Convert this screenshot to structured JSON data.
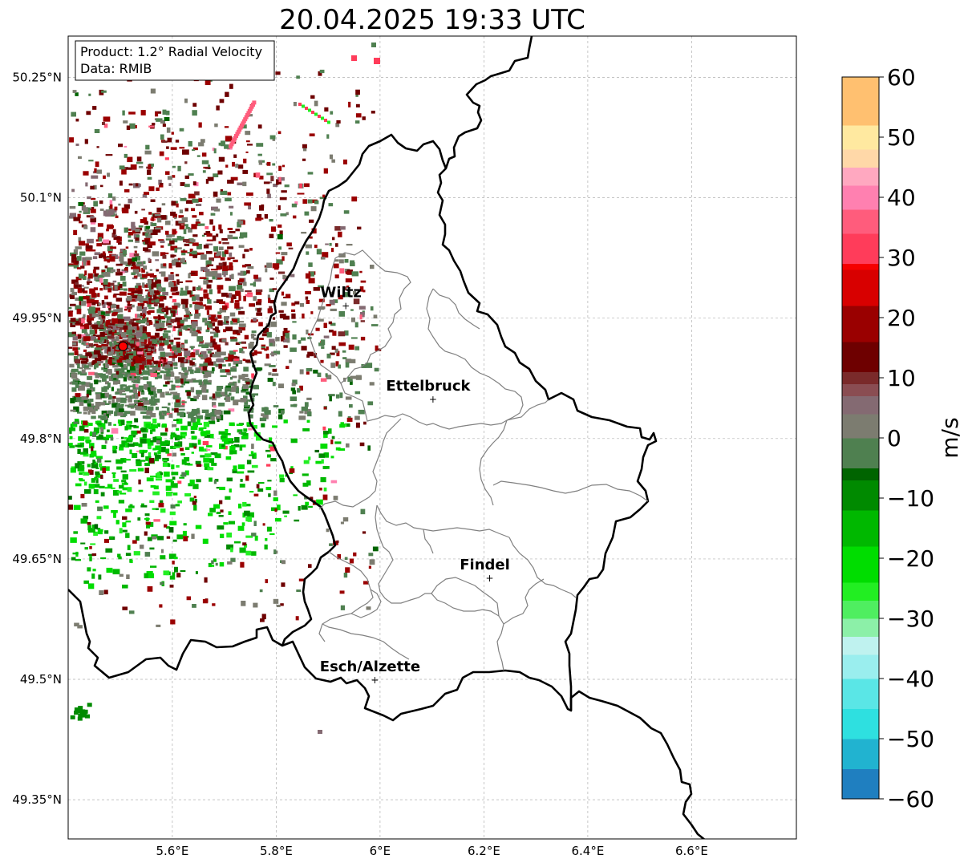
{
  "title": "20.04.2025 19:33 UTC",
  "info_box": {
    "line1": "Product: 1.2° Radial Velocity",
    "line2": "Data: RMIB"
  },
  "map": {
    "lon_range": [
      5.4,
      6.8
    ],
    "lat_range": [
      49.3,
      50.3
    ],
    "lon_ticks": [
      {
        "value": 5.6,
        "label": "5.6°E"
      },
      {
        "value": 5.8,
        "label": "5.8°E"
      },
      {
        "value": 6.0,
        "label": "6°E"
      },
      {
        "value": 6.2,
        "label": "6.2°E"
      },
      {
        "value": 6.4,
        "label": "6.4°E"
      },
      {
        "value": 6.6,
        "label": "6.6°E"
      }
    ],
    "lat_ticks": [
      {
        "value": 50.25,
        "label": "50.25°N"
      },
      {
        "value": 50.1,
        "label": "50.1°N"
      },
      {
        "value": 49.95,
        "label": "49.95°N"
      },
      {
        "value": 49.8,
        "label": "49.8°N"
      },
      {
        "value": 49.65,
        "label": "49.65°N"
      },
      {
        "value": 49.5,
        "label": "49.5°N"
      },
      {
        "value": 49.35,
        "label": "49.35°N"
      }
    ],
    "radar_site": {
      "lon": 5.505,
      "lat": 49.915
    },
    "cities": [
      {
        "name": "Wiltz",
        "lon": 5.934,
        "lat": 49.966
      },
      {
        "name": "Ettelbruck",
        "lon": 6.102,
        "lat": 49.85
      },
      {
        "name": "Findel",
        "lon": 6.211,
        "lat": 49.627
      },
      {
        "name": "Esch/Alzette",
        "lon": 5.99,
        "lat": 49.5
      }
    ],
    "gridline_color": "#b0b0b0",
    "border_color": "#000000",
    "district_color": "#808080"
  },
  "colorbar": {
    "unit": "m/s",
    "min": -60,
    "max": 60,
    "ticks": [
      {
        "value": 60,
        "label": "60"
      },
      {
        "value": 50,
        "label": "50"
      },
      {
        "value": 40,
        "label": "40"
      },
      {
        "value": 30,
        "label": "30"
      },
      {
        "value": 20,
        "label": "20"
      },
      {
        "value": 10,
        "label": "10"
      },
      {
        "value": 0,
        "label": "0"
      },
      {
        "value": -10,
        "label": "−10"
      },
      {
        "value": -20,
        "label": "−20"
      },
      {
        "value": -30,
        "label": "−30"
      },
      {
        "value": -40,
        "label": "−40"
      },
      {
        "value": -50,
        "label": "−50"
      },
      {
        "value": -60,
        "label": "−60"
      }
    ],
    "stops": [
      {
        "value": -60,
        "color": "#1f7fc0"
      },
      {
        "value": -55,
        "color": "#21b3d0"
      },
      {
        "value": -50,
        "color": "#2ee0e0"
      },
      {
        "value": -45,
        "color": "#5ae6e6"
      },
      {
        "value": -40,
        "color": "#9aeeee"
      },
      {
        "value": -36,
        "color": "#bff2ef"
      },
      {
        "value": -33,
        "color": "#8cf0a8"
      },
      {
        "value": -30,
        "color": "#4fee60"
      },
      {
        "value": -27,
        "color": "#22ee22"
      },
      {
        "value": -24,
        "color": "#00dd00"
      },
      {
        "value": -18,
        "color": "#00b800"
      },
      {
        "value": -12,
        "color": "#008a00"
      },
      {
        "value": -7,
        "color": "#006400"
      },
      {
        "value": -5,
        "color": "#4f8050"
      },
      {
        "value": 0,
        "color": "#7c7c70"
      },
      {
        "value": 4,
        "color": "#846a72"
      },
      {
        "value": 7,
        "color": "#8a4d52"
      },
      {
        "value": 9,
        "color": "#7a2a2a"
      },
      {
        "value": 11,
        "color": "#6e0000"
      },
      {
        "value": 16,
        "color": "#9a0000"
      },
      {
        "value": 22,
        "color": "#d80000"
      },
      {
        "value": 28,
        "color": "#f50000"
      },
      {
        "value": 29,
        "color": "#ff3c5a"
      },
      {
        "value": 34,
        "color": "#ff5c7c"
      },
      {
        "value": 38,
        "color": "#ff80b0"
      },
      {
        "value": 42,
        "color": "#ffa8c0"
      },
      {
        "value": 45,
        "color": "#ffd8a8"
      },
      {
        "value": 48,
        "color": "#ffe9a0"
      },
      {
        "value": 52,
        "color": "#ffc070"
      },
      {
        "value": 60,
        "color": "#ff9e50"
      }
    ]
  }
}
